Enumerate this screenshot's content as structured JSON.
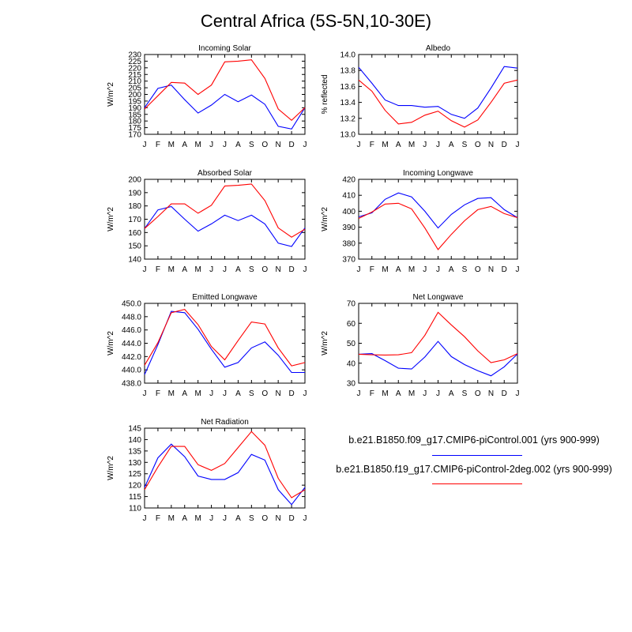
{
  "title": "Central Africa (5S-5N,10-30E)",
  "legend": [
    {
      "label": "b.e21.B1850.f09_g17.CMIP6-piControl.001 (yrs 900-999)",
      "color": "#0000ff"
    },
    {
      "label": "b.e21.B1850.f19_g17.CMIP6-piControl-2deg.002 (yrs 900-999)",
      "color": "#ff0000"
    }
  ],
  "chart_data": [
    {
      "type": "line",
      "title": "Incoming Solar",
      "ylabel": "W/m^2",
      "categories": [
        "J",
        "F",
        "M",
        "A",
        "M",
        "J",
        "J",
        "A",
        "S",
        "O",
        "N",
        "D",
        "J"
      ],
      "ylim": [
        170,
        230
      ],
      "yticks": [
        170,
        175,
        180,
        185,
        190,
        195,
        200,
        205,
        210,
        215,
        220,
        225,
        230
      ],
      "series": [
        {
          "color": "#0000ff",
          "values": [
            190,
            204.5,
            207,
            196,
            186,
            192,
            200,
            194.5,
            199.5,
            192.5,
            176,
            174,
            190
          ]
        },
        {
          "color": "#ff0000",
          "values": [
            189,
            199,
            209,
            208.5,
            200,
            207,
            224.5,
            225,
            226,
            212,
            189,
            180.5,
            190
          ]
        }
      ]
    },
    {
      "type": "line",
      "title": "Albedo",
      "ylabel": "% reflected",
      "categories": [
        "J",
        "F",
        "M",
        "A",
        "M",
        "J",
        "J",
        "A",
        "S",
        "O",
        "N",
        "D",
        "J"
      ],
      "ylim": [
        13.0,
        14.0
      ],
      "yticks": [
        "13.0",
        "13.2",
        "13.4",
        "13.6",
        "13.8",
        "14.0"
      ],
      "series": [
        {
          "color": "#0000ff",
          "values": [
            13.84,
            13.64,
            13.43,
            13.36,
            13.36,
            13.34,
            13.35,
            13.25,
            13.2,
            13.33,
            13.58,
            13.85,
            13.83
          ]
        },
        {
          "color": "#ff0000",
          "values": [
            13.68,
            13.54,
            13.3,
            13.13,
            13.15,
            13.24,
            13.29,
            13.17,
            13.09,
            13.18,
            13.4,
            13.64,
            13.68
          ]
        }
      ]
    },
    {
      "type": "line",
      "title": "Absorbed Solar",
      "ylabel": "W/m^2",
      "categories": [
        "J",
        "F",
        "M",
        "A",
        "M",
        "J",
        "J",
        "A",
        "S",
        "O",
        "N",
        "D",
        "J"
      ],
      "ylim": [
        140,
        200
      ],
      "yticks": [
        140,
        150,
        160,
        170,
        180,
        190,
        200
      ],
      "series": [
        {
          "color": "#0000ff",
          "values": [
            163,
            177,
            179.5,
            170,
            161,
            166.5,
            173,
            169,
            173,
            166.5,
            152,
            149.5,
            163.5
          ]
        },
        {
          "color": "#ff0000",
          "values": [
            163,
            172,
            181.5,
            181.5,
            174.5,
            180.5,
            195,
            195.5,
            196.5,
            184,
            163.5,
            156.5,
            162.5
          ]
        }
      ]
    },
    {
      "type": "line",
      "title": "Incoming Longwave",
      "ylabel": "W/m^2",
      "categories": [
        "J",
        "F",
        "M",
        "A",
        "M",
        "J",
        "J",
        "A",
        "S",
        "O",
        "N",
        "D",
        "J"
      ],
      "ylim": [
        370,
        420
      ],
      "yticks": [
        370,
        380,
        390,
        400,
        410,
        420
      ],
      "series": [
        {
          "color": "#0000ff",
          "values": [
            396.5,
            399,
            407.5,
            411.5,
            409,
            400,
            389.5,
            398,
            404,
            408,
            408.5,
            401,
            396
          ]
        },
        {
          "color": "#ff0000",
          "values": [
            395.5,
            399.5,
            404.5,
            405,
            401.5,
            389.5,
            376,
            385.5,
            394,
            401,
            403,
            398.5,
            396
          ]
        }
      ]
    },
    {
      "type": "line",
      "title": "Emitted Longwave",
      "ylabel": "W/m^2",
      "categories": [
        "J",
        "F",
        "M",
        "A",
        "M",
        "J",
        "J",
        "A",
        "S",
        "O",
        "N",
        "D",
        "J"
      ],
      "ylim": [
        438,
        450
      ],
      "yticks": [
        "438.0",
        "440.0",
        "442.0",
        "444.0",
        "446.0",
        "448.0",
        "450.0"
      ],
      "series": [
        {
          "color": "#0000ff",
          "values": [
            439.3,
            443.8,
            448.8,
            448.6,
            446.1,
            443.1,
            440.4,
            441.1,
            443.3,
            444.2,
            442.2,
            439.6,
            439.6
          ]
        },
        {
          "color": "#ff0000",
          "values": [
            440.7,
            444.1,
            448.6,
            449.1,
            446.8,
            443.5,
            441.5,
            444.4,
            447.2,
            446.9,
            443.3,
            440.6,
            441.1
          ]
        }
      ]
    },
    {
      "type": "line",
      "title": "Net Longwave",
      "ylabel": "W/m^2",
      "categories": [
        "J",
        "F",
        "M",
        "A",
        "M",
        "J",
        "J",
        "A",
        "S",
        "O",
        "N",
        "D",
        "J"
      ],
      "ylim": [
        30,
        70
      ],
      "yticks": [
        30,
        40,
        50,
        60,
        70
      ],
      "series": [
        {
          "color": "#0000ff",
          "values": [
            44.5,
            44.8,
            41.3,
            37.5,
            37.1,
            43.1,
            50.9,
            43.3,
            39.3,
            36.2,
            33.7,
            38.2,
            44.6
          ]
        },
        {
          "color": "#ff0000",
          "values": [
            44.5,
            44.2,
            44.1,
            44.2,
            45.3,
            54,
            65.5,
            59.2,
            53.3,
            46.2,
            40.3,
            41.7,
            44.8
          ]
        }
      ]
    },
    {
      "type": "line",
      "title": "Net Radiation",
      "ylabel": "W/m^2",
      "categories": [
        "J",
        "F",
        "M",
        "A",
        "M",
        "J",
        "J",
        "A",
        "S",
        "O",
        "N",
        "D",
        "J"
      ],
      "ylim": [
        110,
        145
      ],
      "yticks": [
        110,
        115,
        120,
        125,
        130,
        135,
        140,
        145
      ],
      "series": [
        {
          "color": "#0000ff",
          "values": [
            119,
            132,
            138,
            132.5,
            124,
            122.5,
            122.5,
            125.5,
            133.5,
            131,
            118,
            111.5,
            119
          ]
        },
        {
          "color": "#ff0000",
          "values": [
            118,
            128,
            137,
            137,
            129,
            126.5,
            129.5,
            136.5,
            143.5,
            137.5,
            123,
            114.5,
            118
          ]
        }
      ]
    }
  ]
}
